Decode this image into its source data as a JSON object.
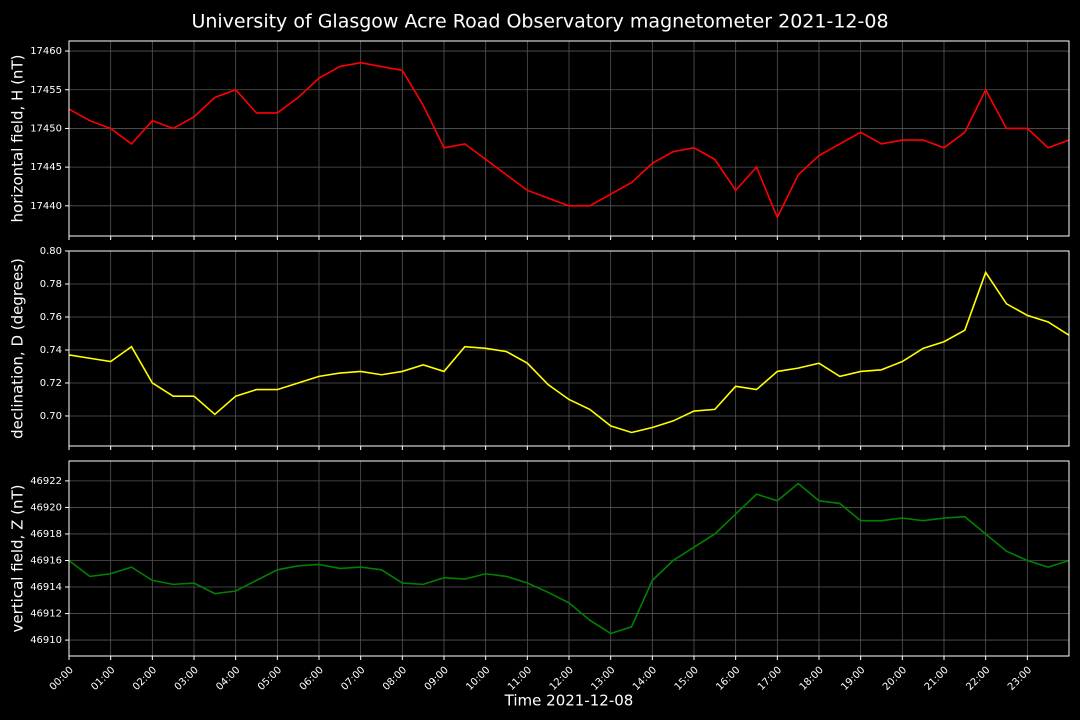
{
  "title": "University of Glasgow Acre Road Observatory magnetometer 2021-12-08",
  "xlabel": "Time 2021-12-08",
  "chart_data": [
    {
      "type": "line",
      "ylabel": "horizontal field, H (nT)",
      "color": "#ff0000",
      "grid": true,
      "x": [
        0,
        0.5,
        1,
        1.5,
        2,
        2.5,
        3,
        3.5,
        4,
        4.5,
        5,
        5.5,
        6,
        6.5,
        7,
        7.5,
        8,
        8.5,
        9,
        9.5,
        10,
        10.5,
        11,
        11.5,
        12,
        12.5,
        13,
        13.5,
        14,
        14.5,
        15,
        15.5,
        16,
        16.5,
        17,
        17.5,
        18,
        18.5,
        19,
        19.5,
        20,
        20.5,
        21,
        21.5,
        22,
        22.5,
        23,
        23.5,
        24
      ],
      "values": [
        17452.5,
        17451,
        17450,
        17448,
        17451,
        17450,
        17451.5,
        17454,
        17455,
        17452,
        17452,
        17454,
        17456.5,
        17458,
        17458.5,
        17458,
        17457.5,
        17453,
        17447.5,
        17448,
        17446,
        17444,
        17442,
        17441,
        17440,
        17440,
        17441.5,
        17443,
        17445.5,
        17447,
        17447.5,
        17446,
        17442,
        17445,
        17438.5,
        17444,
        17446.5,
        17448,
        17449.5,
        17448,
        17448.5,
        17448.5,
        17447.5,
        17449.5,
        17455,
        17450,
        17450,
        17447.5,
        17448.5
      ],
      "xlim": [
        0,
        24
      ],
      "ylim": [
        17436.1,
        17461.3
      ],
      "yticks": [
        17440,
        17445,
        17450,
        17455,
        17460
      ]
    },
    {
      "type": "line",
      "ylabel": "declination, D (degrees)",
      "color": "#ffff00",
      "grid": true,
      "x": [
        0,
        0.5,
        1,
        1.5,
        2,
        2.5,
        3,
        3.5,
        4,
        4.5,
        5,
        5.5,
        6,
        6.5,
        7,
        7.5,
        8,
        8.5,
        9,
        9.5,
        10,
        10.5,
        11,
        11.5,
        12,
        12.5,
        13,
        13.5,
        14,
        14.5,
        15,
        15.5,
        16,
        16.5,
        17,
        17.5,
        18,
        18.5,
        19,
        19.5,
        20,
        20.5,
        21,
        21.5,
        22,
        22.5,
        23,
        23.5,
        24
      ],
      "values": [
        0.737,
        0.735,
        0.733,
        0.742,
        0.72,
        0.712,
        0.712,
        0.701,
        0.712,
        0.716,
        0.716,
        0.72,
        0.724,
        0.726,
        0.727,
        0.725,
        0.727,
        0.731,
        0.727,
        0.742,
        0.741,
        0.739,
        0.732,
        0.719,
        0.71,
        0.704,
        0.694,
        0.69,
        0.693,
        0.697,
        0.703,
        0.704,
        0.718,
        0.716,
        0.727,
        0.729,
        0.732,
        0.724,
        0.727,
        0.728,
        0.733,
        0.741,
        0.745,
        0.752,
        0.787,
        0.768,
        0.761,
        0.757,
        0.749
      ],
      "xlim": [
        0,
        24
      ],
      "ylim": [
        0.6818,
        0.8
      ],
      "yticks": [
        {
          "value": 0.7,
          "label": "0.70"
        },
        0.72,
        0.74,
        0.76,
        0.78,
        {
          "value": 0.8,
          "label": "0.80"
        }
      ]
    },
    {
      "type": "line",
      "ylabel": "vertical field, Z (nT)",
      "color": "#008000",
      "grid": true,
      "x": [
        0,
        0.5,
        1,
        1.5,
        2,
        2.5,
        3,
        3.5,
        4,
        4.5,
        5,
        5.5,
        6,
        6.5,
        7,
        7.5,
        8,
        8.5,
        9,
        9.5,
        10,
        10.5,
        11,
        11.5,
        12,
        12.5,
        13,
        13.5,
        14,
        14.5,
        15,
        15.5,
        16,
        16.5,
        17,
        17.5,
        18,
        18.5,
        19,
        19.5,
        20,
        20.5,
        21,
        21.5,
        22,
        22.5,
        23,
        23.5,
        24
      ],
      "values": [
        46916,
        46914.8,
        46915,
        46915.5,
        46914.5,
        46914.2,
        46914.3,
        46913.5,
        46913.7,
        46914.5,
        46915.3,
        46915.6,
        46915.7,
        46915.4,
        46915.5,
        46915.3,
        46914.3,
        46914.2,
        46914.7,
        46914.6,
        46915,
        46914.8,
        46914.3,
        46913.6,
        46912.8,
        46911.5,
        46910.5,
        46911,
        46914.5,
        46916,
        46917,
        46918,
        46919.5,
        46921,
        46920.5,
        46921.8,
        46920.5,
        46920.3,
        46919,
        46919,
        46919.2,
        46919,
        46919.2,
        46919.3,
        46918,
        46916.7,
        46916,
        46915.5,
        46916
      ],
      "xlim": [
        0,
        24
      ],
      "ylim": [
        46908.8,
        46923.5
      ],
      "yticks": [
        46910,
        46912,
        46914,
        46916,
        46918,
        46920,
        46922
      ],
      "xticks": [
        {
          "value": 0,
          "label": "00:00"
        },
        {
          "value": 1,
          "label": "01:00"
        },
        {
          "value": 2,
          "label": "02:00"
        },
        {
          "value": 3,
          "label": "03:00"
        },
        {
          "value": 4,
          "label": "04:00"
        },
        {
          "value": 5,
          "label": "05:00"
        },
        {
          "value": 6,
          "label": "06:00"
        },
        {
          "value": 7,
          "label": "07:00"
        },
        {
          "value": 8,
          "label": "08:00"
        },
        {
          "value": 9,
          "label": "09:00"
        },
        {
          "value": 10,
          "label": "10:00"
        },
        {
          "value": 11,
          "label": "11:00"
        },
        {
          "value": 12,
          "label": "12:00"
        },
        {
          "value": 13,
          "label": "13:00"
        },
        {
          "value": 14,
          "label": "14:00"
        },
        {
          "value": 15,
          "label": "15:00"
        },
        {
          "value": 16,
          "label": "16:00"
        },
        {
          "value": 17,
          "label": "17:00"
        },
        {
          "value": 18,
          "label": "18:00"
        },
        {
          "value": 19,
          "label": "19:00"
        },
        {
          "value": 20,
          "label": "20:00"
        },
        {
          "value": 21,
          "label": "21:00"
        },
        {
          "value": 22,
          "label": "22:00"
        },
        {
          "value": 23,
          "label": "23:00"
        }
      ]
    }
  ]
}
